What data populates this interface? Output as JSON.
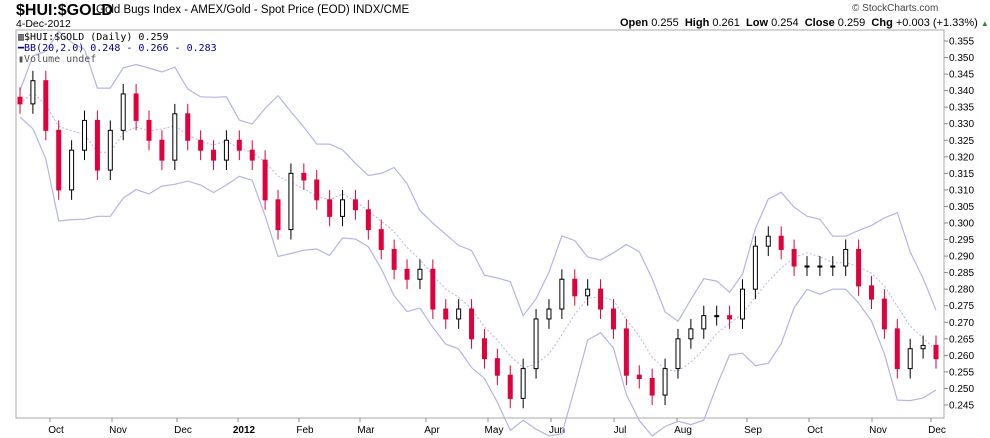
{
  "header": {
    "symbol": "$HUI:$GOLD",
    "description": "Gold Bugs Index - AMEX/Gold - Spot Price (EOD) INDX/CME",
    "date": "4-Dec-2012",
    "copyright": "© StockCharts.com",
    "open_label": "Open",
    "open": "0.255",
    "high_label": "High",
    "high": "0.261",
    "low_label": "Low",
    "low": "0.254",
    "close_label": "Close",
    "close": "0.259",
    "chg_label": "Chg",
    "chg": "+0.003 (+1.33%)"
  },
  "legend": {
    "price": "$HUI:$GOLD (Daily) 0.259",
    "bb": "BB(20,2.0) 0.248 - 0.266 - 0.283",
    "volume": "Volume undef"
  },
  "chart_data": {
    "type": "candlestick",
    "ylim": [
      0.242,
      0.357
    ],
    "yticks": [
      "0.355",
      "0.350",
      "0.345",
      "0.340",
      "0.335",
      "0.330",
      "0.325",
      "0.320",
      "0.315",
      "0.310",
      "0.305",
      "0.300",
      "0.295",
      "0.290",
      "0.285",
      "0.280",
      "0.275",
      "0.270",
      "0.265",
      "0.260",
      "0.255",
      "0.250",
      "0.245"
    ],
    "xticks": [
      "Oct",
      "Nov",
      "Dec",
      "2012",
      "Feb",
      "Mar",
      "Apr",
      "May",
      "Jun",
      "Jul",
      "Aug",
      "Sep",
      "Oct",
      "Nov",
      "Dec"
    ],
    "closes": [
      0.336,
      0.343,
      0.328,
      0.31,
      0.322,
      0.331,
      0.316,
      0.328,
      0.339,
      0.331,
      0.325,
      0.319,
      0.333,
      0.325,
      0.322,
      0.319,
      0.325,
      0.322,
      0.319,
      0.307,
      0.298,
      0.315,
      0.313,
      0.307,
      0.302,
      0.307,
      0.304,
      0.298,
      0.292,
      0.286,
      0.283,
      0.286,
      0.274,
      0.271,
      0.274,
      0.265,
      0.259,
      0.254,
      0.247,
      0.256,
      0.271,
      0.274,
      0.283,
      0.278,
      0.28,
      0.274,
      0.268,
      0.254,
      0.253,
      0.248,
      0.256,
      0.265,
      0.268,
      0.272,
      0.272,
      0.271,
      0.28,
      0.293,
      0.296,
      0.292,
      0.287,
      0.287,
      0.287,
      0.287,
      0.292,
      0.281,
      0.277,
      0.268,
      0.256,
      0.262,
      0.263,
      0.259
    ],
    "colors": {
      "up": "#000000",
      "down": "#e0003c",
      "bands": "#b4b4e6",
      "grid": "#cccccc"
    }
  }
}
